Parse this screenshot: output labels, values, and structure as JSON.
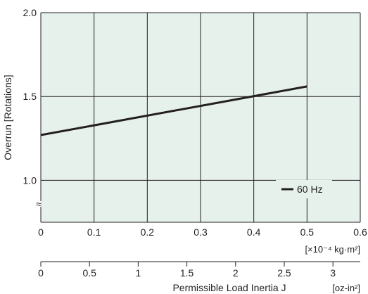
{
  "chart_data": {
    "type": "line",
    "title": "",
    "ylabel": "Overrun [Rotations]",
    "xlabel": "Permissible Load Inertia J",
    "x_unit": "[×10⁻⁴ kg·m²]",
    "x2_unit": "[oz-in²]",
    "xlim": [
      0,
      0.6
    ],
    "ylim": [
      0.75,
      2.0
    ],
    "x_ticks": [
      "0",
      "0.1",
      "0.2",
      "0.3",
      "0.4",
      "0.5",
      "0.6"
    ],
    "y_ticks": [
      "1.0",
      "1.5",
      "2.0"
    ],
    "x_ticks_values": [
      0,
      0.1,
      0.2,
      0.3,
      0.4,
      0.5,
      0.6
    ],
    "y_ticks_values": [
      1.0,
      1.5,
      2.0
    ],
    "x2_ticks": [
      "0",
      "0.5",
      "1",
      "1.5",
      "2",
      "2.5",
      "3"
    ],
    "x2_ticks_values": [
      0,
      0.5,
      1,
      1.5,
      2,
      2.5,
      3
    ],
    "x2_factor_oz_in2_per_unit": 5.4675,
    "axis_break_symbol": "≈",
    "grid": true,
    "legend_position": "bottom-right",
    "series": [
      {
        "name": "60 Hz",
        "x": [
          0,
          0.5
        ],
        "y": [
          1.27,
          1.56
        ]
      }
    ],
    "colors": {
      "plot_bg": "#e6f1ec",
      "grid": "#231f20",
      "line": "#231f20"
    }
  }
}
